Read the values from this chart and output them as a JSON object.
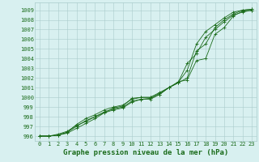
{
  "x": [
    0,
    1,
    2,
    3,
    4,
    5,
    6,
    7,
    8,
    9,
    10,
    11,
    12,
    13,
    14,
    15,
    16,
    17,
    18,
    19,
    20,
    21,
    22,
    23
  ],
  "series": [
    [
      996.0,
      996.0,
      996.1,
      996.4,
      997.2,
      997.8,
      998.2,
      998.7,
      999.0,
      999.2,
      999.8,
      1000.0,
      1000.0,
      1000.5,
      1001.0,
      1001.5,
      1002.8,
      1005.5,
      1006.8,
      1007.5,
      1008.2,
      1008.8,
      1009.0,
      1009.1
    ],
    [
      996.0,
      996.0,
      996.1,
      996.4,
      997.0,
      997.6,
      998.0,
      998.5,
      998.8,
      999.0,
      999.6,
      999.8,
      999.8,
      1000.3,
      1001.0,
      1001.5,
      1003.5,
      1004.5,
      1006.2,
      1007.0,
      1007.8,
      1008.5,
      1008.8,
      1009.0
    ],
    [
      996.0,
      996.0,
      996.2,
      996.5,
      997.1,
      997.5,
      998.0,
      998.4,
      998.9,
      999.1,
      999.9,
      1000.0,
      1000.0,
      1000.4,
      1001.0,
      1001.6,
      1001.8,
      1003.8,
      1004.0,
      1006.5,
      1007.2,
      1008.4,
      1008.9,
      1009.0
    ],
    [
      996.0,
      996.0,
      996.1,
      996.3,
      996.8,
      997.3,
      997.8,
      998.4,
      998.7,
      998.9,
      999.5,
      999.8,
      999.9,
      1000.3,
      1001.0,
      1001.5,
      1002.0,
      1004.8,
      1005.5,
      1007.2,
      1008.0,
      1008.6,
      1009.0,
      1009.1
    ]
  ],
  "line_color": "#1a6b1a",
  "marker_color": "#1a6b1a",
  "bg_color": "#d8f0f0",
  "grid_color": "#aacccc",
  "ylim": [
    995.5,
    1009.8
  ],
  "yticks": [
    996,
    997,
    998,
    999,
    1000,
    1001,
    1002,
    1003,
    1004,
    1005,
    1006,
    1007,
    1008,
    1009
  ],
  "xlim": [
    -0.5,
    23.5
  ],
  "xticks": [
    0,
    1,
    2,
    3,
    4,
    5,
    6,
    7,
    8,
    9,
    10,
    11,
    12,
    13,
    14,
    15,
    16,
    17,
    18,
    19,
    20,
    21,
    22,
    23
  ],
  "xlabel": "Graphe pression niveau de la mer (hPa)",
  "axis_fontsize": 5.0,
  "xlabel_fontsize": 6.5
}
